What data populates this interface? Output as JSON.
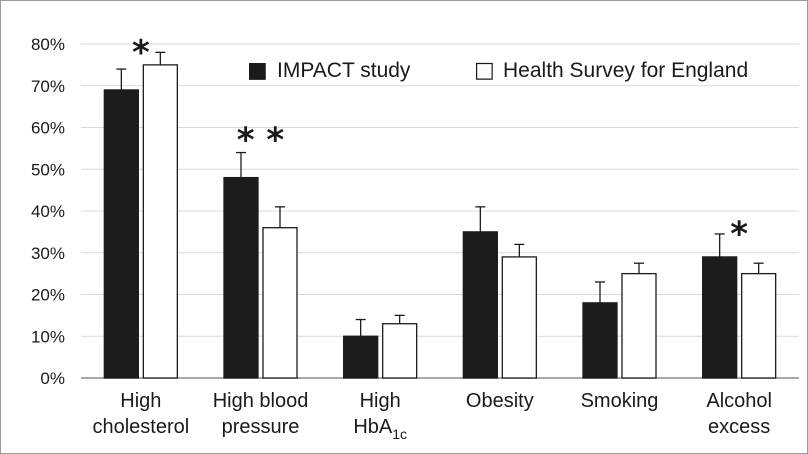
{
  "chart_data": {
    "type": "bar",
    "title": "",
    "xlabel": "",
    "ylabel": "",
    "ylim": [
      0,
      80
    ],
    "y_ticks": [
      "0%",
      "10%",
      "20%",
      "30%",
      "40%",
      "50%",
      "60%",
      "70%",
      "80%"
    ],
    "y_tick_values": [
      0,
      10,
      20,
      30,
      40,
      50,
      60,
      70,
      80
    ],
    "grid": true,
    "legend_position": "top-right",
    "categories": [
      {
        "lines": [
          "High",
          "cholesterol"
        ]
      },
      {
        "lines": [
          "High blood",
          "pressure"
        ]
      },
      {
        "lines": [
          "High",
          "HbA"
        ],
        "subscript": "1c"
      },
      {
        "lines": [
          "Obesity"
        ]
      },
      {
        "lines": [
          "Smoking"
        ]
      },
      {
        "lines": [
          "Alcohol",
          "excess"
        ]
      }
    ],
    "series": [
      {
        "name": "IMPACT study",
        "color": "#1c1c1c",
        "values": [
          69,
          48,
          10,
          35,
          18,
          29
        ],
        "error_upper": [
          74,
          54,
          14,
          41,
          23,
          34.5
        ]
      },
      {
        "name": "Health Survey for England",
        "color": "#ffffff",
        "values": [
          75,
          36,
          13,
          29,
          25,
          25
        ],
        "error_upper": [
          78,
          41,
          15,
          32,
          27.5,
          27.5
        ]
      }
    ],
    "annotations": [
      {
        "category_index": 0,
        "text": "*",
        "value": 80.5
      },
      {
        "category_index": 1,
        "text": "**",
        "value": 59.5
      },
      {
        "category_index": 5,
        "text": "*",
        "value": 37
      }
    ]
  },
  "legend": {
    "marker_1": "■",
    "label_1": "IMPACT study",
    "marker_2": "□",
    "label_2": "Health Survey for England"
  }
}
